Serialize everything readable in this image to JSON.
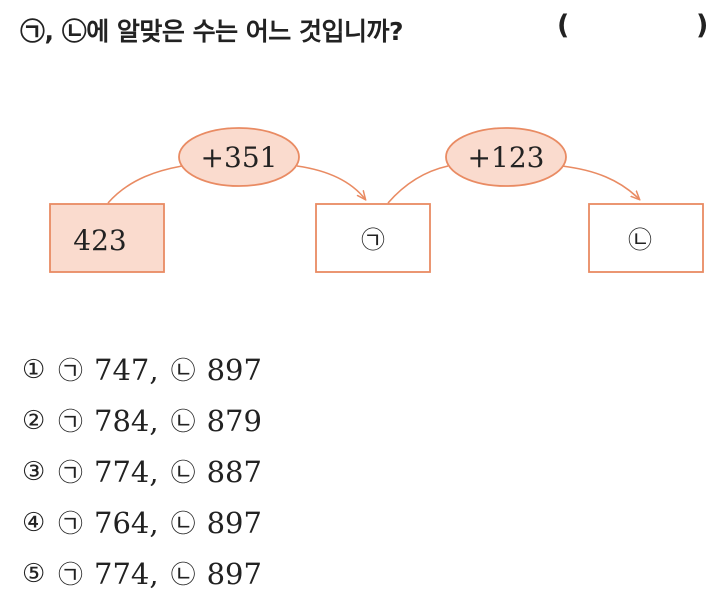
{
  "question": {
    "text": "㉠, ㉡에 알맞은 수는 어느 것입니까?",
    "paren_open": "(",
    "paren_close": ")"
  },
  "diagram": {
    "start_value": "423",
    "op1": "+351",
    "op2": "+123",
    "box1_symbol": "㉠",
    "box2_symbol": "㉡",
    "accent_color": "#E98B63",
    "fill_color": "#FADBCE"
  },
  "choices": [
    {
      "num": "①",
      "sym_a": "㉠",
      "a": "747,",
      "sym_b": "㉡",
      "b": "897"
    },
    {
      "num": "②",
      "sym_a": "㉠",
      "a": "784,",
      "sym_b": "㉡",
      "b": "879"
    },
    {
      "num": "③",
      "sym_a": "㉠",
      "a": "774,",
      "sym_b": "㉡",
      "b": "887"
    },
    {
      "num": "④",
      "sym_a": "㉠",
      "a": "764,",
      "sym_b": "㉡",
      "b": "897"
    },
    {
      "num": "⑤",
      "sym_a": "㉠",
      "a": "774,",
      "sym_b": "㉡",
      "b": "897"
    }
  ]
}
